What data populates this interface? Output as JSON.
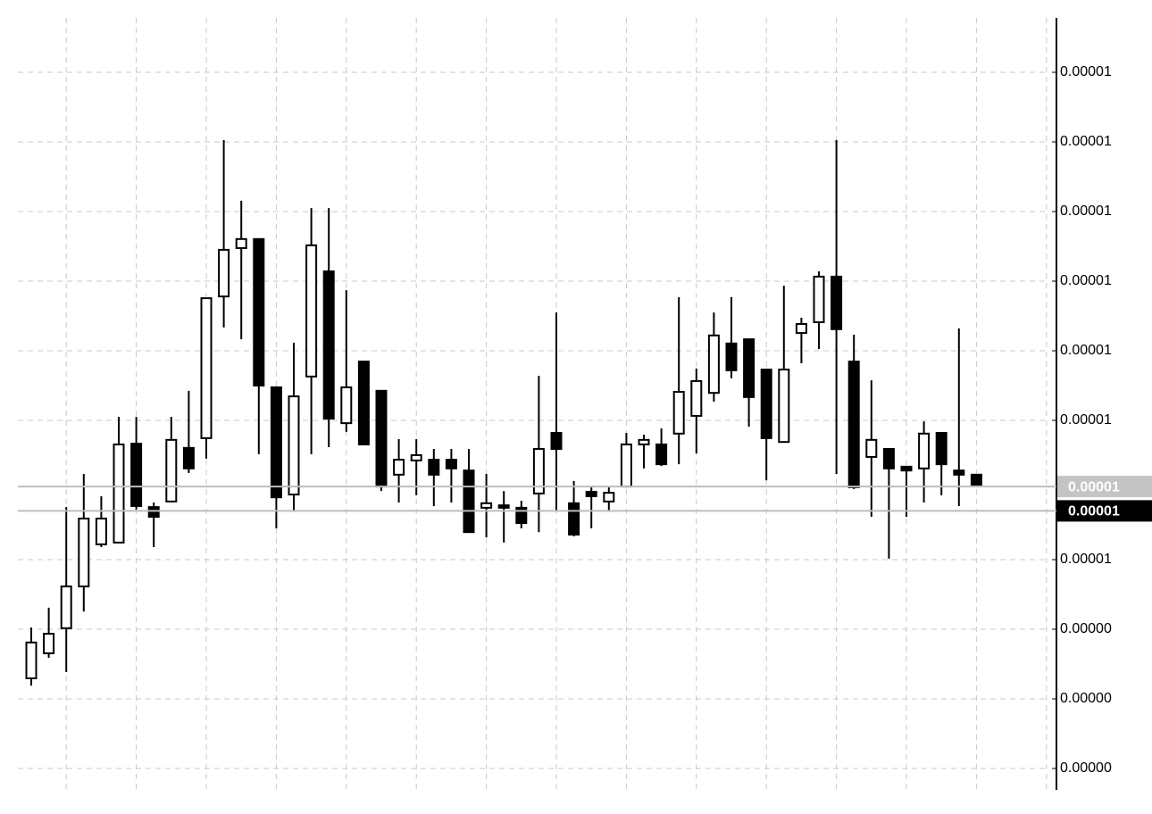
{
  "chart_data": {
    "type": "candlestick",
    "open": [
      4.759e-06,
      4.831e-06,
      4.903e-06,
      5.023e-06,
      5.144e-06,
      5.149e-06,
      5.433e-06,
      5.251e-06,
      5.267e-06,
      5.421e-06,
      5.449e-06,
      5.856e-06,
      5.995e-06,
      6.021e-06,
      5.595e-06,
      5.287e-06,
      5.626e-06,
      5.928e-06,
      5.492e-06,
      5.669e-06,
      5.585e-06,
      5.344e-06,
      5.385e-06,
      5.387e-06,
      5.387e-06,
      5.356e-06,
      5.249e-06,
      5.256e-06,
      5.249e-06,
      5.29e-06,
      5.464e-06,
      5.262e-06,
      5.295e-06,
      5.267e-06,
      5.31e-06,
      5.431e-06,
      5.431e-06,
      5.462e-06,
      5.513e-06,
      5.579e-06,
      5.721e-06,
      5.733e-06,
      5.646e-06,
      5.438e-06,
      5.751e-06,
      5.782e-06,
      5.913e-06,
      5.669e-06,
      5.395e-06,
      5.418e-06,
      5.367e-06,
      5.362e-06,
      5.464e-06,
      5.356e-06,
      5.344e-06
    ],
    "high": [
      4.905e-06,
      4.962e-06,
      5.251e-06,
      5.346e-06,
      5.282e-06,
      5.51e-06,
      5.51e-06,
      5.264e-06,
      5.51e-06,
      5.585e-06,
      5.851e-06,
      6.305e-06,
      6.131e-06,
      6.021e-06,
      5.595e-06,
      5.723e-06,
      6.11e-06,
      6.11e-06,
      5.874e-06,
      5.669e-06,
      5.585e-06,
      5.446e-06,
      5.446e-06,
      5.418e-06,
      5.418e-06,
      5.418e-06,
      5.346e-06,
      5.297e-06,
      5.269e-06,
      5.628e-06,
      5.81e-06,
      5.326e-06,
      5.31e-06,
      5.31e-06,
      5.464e-06,
      5.459e-06,
      5.477e-06,
      5.854e-06,
      5.649e-06,
      5.81e-06,
      5.854e-06,
      5.733e-06,
      5.646e-06,
      5.887e-06,
      5.795e-06,
      5.928e-06,
      6.305e-06,
      5.746e-06,
      5.615e-06,
      5.418e-06,
      5.367e-06,
      5.497e-06,
      5.464e-06,
      5.764e-06,
      5.344e-06
    ],
    "low": [
      4.738e-06,
      4.818e-06,
      4.777e-06,
      4.951e-06,
      5.136e-06,
      5.149e-06,
      5.244e-06,
      5.136e-06,
      5.267e-06,
      5.349e-06,
      5.39e-06,
      5.767e-06,
      5.733e-06,
      5.403e-06,
      5.19e-06,
      5.238e-06,
      5.403e-06,
      5.423e-06,
      5.467e-06,
      5.431e-06,
      5.297e-06,
      5.264e-06,
      5.285e-06,
      5.254e-06,
      5.264e-06,
      5.179e-06,
      5.164e-06,
      5.149e-06,
      5.19e-06,
      5.179e-06,
      5.238e-06,
      5.167e-06,
      5.19e-06,
      5.238e-06,
      5.31e-06,
      5.362e-06,
      5.369e-06,
      5.374e-06,
      5.405e-06,
      5.554e-06,
      5.621e-06,
      5.482e-06,
      5.328e-06,
      5.438e-06,
      5.664e-06,
      5.705e-06,
      5.346e-06,
      5.303e-06,
      5.223e-06,
      5.103e-06,
      5.223e-06,
      5.264e-06,
      5.285e-06,
      5.254e-06,
      5.315e-06
    ],
    "close": [
      4.862e-06,
      4.887e-06,
      5.023e-06,
      5.218e-06,
      5.218e-06,
      5.431e-06,
      5.254e-06,
      5.223e-06,
      5.444e-06,
      5.362e-06,
      5.851e-06,
      5.99e-06,
      6.021e-06,
      5.6e-06,
      5.279e-06,
      5.569e-06,
      6.003e-06,
      5.505e-06,
      5.595e-06,
      5.431e-06,
      5.31e-06,
      5.387e-06,
      5.4e-06,
      5.344e-06,
      5.362e-06,
      5.179e-06,
      5.262e-06,
      5.249e-06,
      5.205e-06,
      5.418e-06,
      5.418e-06,
      5.172e-06,
      5.282e-06,
      5.292e-06,
      5.431e-06,
      5.444e-06,
      5.374e-06,
      5.582e-06,
      5.613e-06,
      5.744e-06,
      5.644e-06,
      5.567e-06,
      5.449e-06,
      5.646e-06,
      5.777e-06,
      5.913e-06,
      5.762e-06,
      5.308e-06,
      5.444e-06,
      5.362e-06,
      5.356e-06,
      5.462e-06,
      5.374e-06,
      5.344e-06,
      5.315e-06
    ],
    "ylim": [
      4.4e-06,
      6.7e-06
    ],
    "yticks": [
      {
        "value": 4.5e-06,
        "label": "0.00000"
      },
      {
        "value": 4.7e-06,
        "label": "0.00000"
      },
      {
        "value": 4.9e-06,
        "label": "0.00000"
      },
      {
        "value": 5.1e-06,
        "label": "0.00001"
      },
      {
        "value": 5.5e-06,
        "label": "0.00001"
      },
      {
        "value": 5.7e-06,
        "label": "0.00001"
      },
      {
        "value": 5.9e-06,
        "label": "0.00001"
      },
      {
        "value": 6.1e-06,
        "label": "0.00001"
      },
      {
        "value": 6.3e-06,
        "label": "0.00001"
      },
      {
        "value": 6.5e-06,
        "label": "0.00001"
      }
    ],
    "grid": true,
    "price_lines": [
      {
        "value": 5.31e-06,
        "label": "0.00001",
        "color": "#c4c4c4"
      },
      {
        "value": 5.24e-06,
        "label": "0.00001",
        "color": "#000000"
      }
    ]
  }
}
